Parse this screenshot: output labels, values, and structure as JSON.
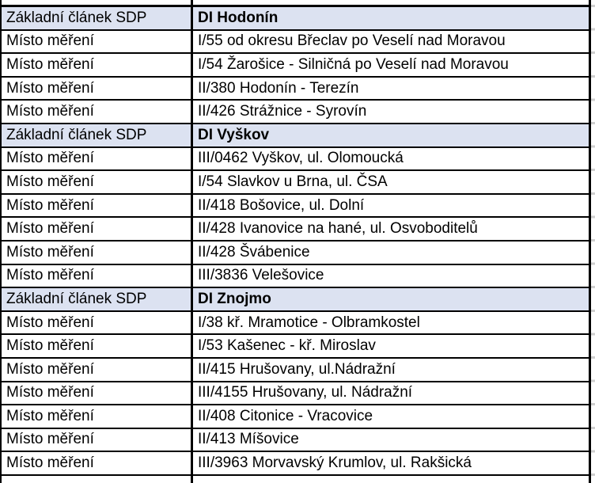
{
  "table": {
    "label_column_text": "Místo měření",
    "section_label_text": "Základní článek SDP",
    "colors": {
      "section_row_bg": "#dce2f1",
      "border": "#000000",
      "grid_tick": "#cfcfcf",
      "text": "#000000"
    },
    "rows": [
      {
        "type": "section",
        "label": "Základní článek SDP",
        "value": "DI Hodonín"
      },
      {
        "type": "data",
        "label": "Místo měření",
        "value": "I/55 od okresu Břeclav po Veselí nad Moravou"
      },
      {
        "type": "data",
        "label": "Místo měření",
        "value": "I/54 Žarošice - Silničná po Veselí nad Moravou"
      },
      {
        "type": "data",
        "label": "Místo měření",
        "value": "II/380 Hodonín - Terezín"
      },
      {
        "type": "data",
        "label": "Místo měření",
        "value": "II/426 Strážnice - Syrovín"
      },
      {
        "type": "section",
        "label": "Základní článek SDP",
        "value": "DI Vyškov"
      },
      {
        "type": "data",
        "label": "Místo měření",
        "value": "III/0462 Vyškov, ul. Olomoucká"
      },
      {
        "type": "data",
        "label": "Místo měření",
        "value": "I/54 Slavkov u Brna, ul. ČSA"
      },
      {
        "type": "data",
        "label": "Místo měření",
        "value": "II/418 Bošovice, ul. Dolní"
      },
      {
        "type": "data",
        "label": "Místo měření",
        "value": "II/428 Ivanovice na hané, ul. Osvoboditelů"
      },
      {
        "type": "data",
        "label": "Místo měření",
        "value": "II/428 Švábenice"
      },
      {
        "type": "data",
        "label": "Místo měření",
        "value": "III/3836 Velešovice"
      },
      {
        "type": "section",
        "label": "Základní článek SDP",
        "value": "DI Znojmo"
      },
      {
        "type": "data",
        "label": "Místo měření",
        "value": "I/38 kř. Mramotice - Olbramkostel"
      },
      {
        "type": "data",
        "label": "Místo měření",
        "value": "I/53 Kašenec - kř. Miroslav"
      },
      {
        "type": "data",
        "label": "Místo měření",
        "value": "II/415 Hrušovany, ul.Nádražní"
      },
      {
        "type": "data",
        "label": "Místo měření",
        "value": "III/4155 Hrušovany, ul. Nádražní"
      },
      {
        "type": "data",
        "label": "Místo měření",
        "value": "II/408 Citonice - Vracovice"
      },
      {
        "type": "data",
        "label": "Místo měření",
        "value": "II/413 Míšovice"
      },
      {
        "type": "data",
        "label": "Místo měření",
        "value": "III/3963 Morvavský Krumlov, ul. Rakšická"
      }
    ]
  }
}
